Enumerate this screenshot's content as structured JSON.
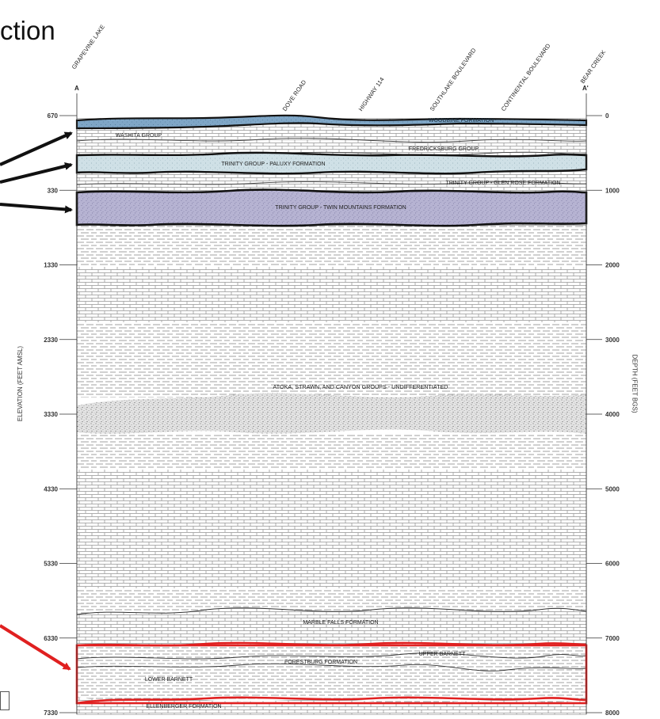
{
  "title_fragment": "ction",
  "locations": {
    "left_end": "GRAPEVINE LAKE",
    "dove_road": "DOVE ROAD",
    "highway": "HIGHWAY 114",
    "southlake": "SOUTHLAKE BOULEVARD",
    "continental": "CONTINENTAL BOULEVARD",
    "right_end": "BEAR CREEK"
  },
  "section_ends": {
    "left": "A",
    "right": "A'"
  },
  "axes": {
    "left_title": "ELEVATION (FEET AMSL)",
    "right_title": "DEPTH (FEET BGS)",
    "left_ticks": [
      {
        "label": "670",
        "depth": 0
      },
      {
        "label": "330",
        "depth": 1000
      },
      {
        "label": "1330",
        "depth": 2000
      },
      {
        "label": "2330",
        "depth": 3000
      },
      {
        "label": "3330",
        "depth": 4000
      },
      {
        "label": "4330",
        "depth": 5000
      },
      {
        "label": "5330",
        "depth": 6000
      },
      {
        "label": "6330",
        "depth": 7000
      },
      {
        "label": "7330",
        "depth": 8000
      }
    ],
    "right_ticks": [
      "0",
      "1000",
      "2000",
      "3000",
      "4000",
      "5000",
      "6000",
      "7000",
      "8000"
    ]
  },
  "formations": {
    "woodbine": "WOODBINE FORMATION",
    "washita": "WASHITA GROUP",
    "fredericksburg": "FREDRICKSBURG GROUP",
    "paluxy": "TRINITY GROUP - PALUXY FORMATION",
    "glen_rose": "TRINITY GROUP - GLEN ROSE FORMATION",
    "twin_mountains": "TRINITY GROUP - TWIN MOUNTAINS FORMATION",
    "atoka": "ATOKA, STRAWN, AND CANYON GROUPS - UNDIFFERENTIATED",
    "marble_falls": "MARBLE FALLS FORMATION",
    "upper_barnett": "UPPER BARNETT",
    "forestburg": "FORESTBURG FORMATION",
    "lower_barnett": "LOWER BARNETT",
    "ellenberger": "ELLENBERGER FORMATION"
  },
  "colors": {
    "woodbine": "#7fa6c6",
    "paluxy": "#cfe0e6",
    "twin_mountains": "#b6b3d2",
    "callout_black": "#111111",
    "callout_red": "#e02020",
    "outline": "#111111"
  }
}
